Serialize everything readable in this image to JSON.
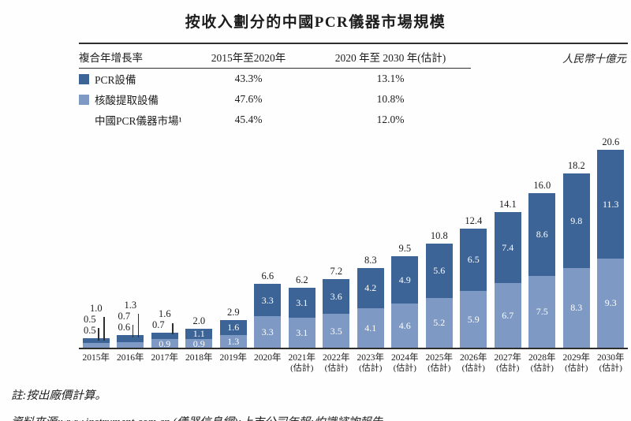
{
  "title": "按收入劃分的中國PCR儀器市場規模",
  "unit_label": "人民幣十億元",
  "cagr_table": {
    "header": {
      "label": "複合年增長率",
      "col1": "2015年至2020年",
      "col2": "2020 年至 2030 年(估計)"
    },
    "rows": [
      {
        "label": "PCR設備",
        "swatch": "dark",
        "v1": "43.3%",
        "v2": "13.1%"
      },
      {
        "label": "核酸提取設備",
        "swatch": "light",
        "v1": "47.6%",
        "v2": "10.8%"
      },
      {
        "label": "中國PCR儀器市場¹",
        "swatch": "none",
        "v1": "45.4%",
        "v2": "12.0%"
      }
    ]
  },
  "chart_data": {
    "type": "bar",
    "stacked": true,
    "title": "按收入劃分的中國PCR儀器市場規模",
    "unit": "人民幣十億元",
    "ylim": [
      0,
      21
    ],
    "grid": false,
    "legend_position": "top-left table",
    "categories": [
      {
        "label": "2015年",
        "sub": ""
      },
      {
        "label": "2016年",
        "sub": ""
      },
      {
        "label": "2017年",
        "sub": ""
      },
      {
        "label": "2018年",
        "sub": ""
      },
      {
        "label": "2019年",
        "sub": ""
      },
      {
        "label": "2020年",
        "sub": ""
      },
      {
        "label": "2021年",
        "sub": "(估計)"
      },
      {
        "label": "2022年",
        "sub": "(估計)"
      },
      {
        "label": "2023年",
        "sub": "(估計)"
      },
      {
        "label": "2024年",
        "sub": "(估計)"
      },
      {
        "label": "2025年",
        "sub": "(估計)"
      },
      {
        "label": "2026年",
        "sub": "(估計)"
      },
      {
        "label": "2027年",
        "sub": "(估計)"
      },
      {
        "label": "2028年",
        "sub": "(估計)"
      },
      {
        "label": "2029年",
        "sub": "(估計)"
      },
      {
        "label": "2030年",
        "sub": "(估計)"
      }
    ],
    "series": [
      {
        "name": "PCR設備",
        "color": "#3d6496",
        "values": [
          0.5,
          0.7,
          0.7,
          1.1,
          1.6,
          3.3,
          3.1,
          3.6,
          4.2,
          4.9,
          5.6,
          6.5,
          7.4,
          8.6,
          9.8,
          11.3
        ]
      },
      {
        "name": "核酸提取設備",
        "color": "#7e99c3",
        "values": [
          0.5,
          0.6,
          0.9,
          0.9,
          1.3,
          3.3,
          3.1,
          3.5,
          4.1,
          4.6,
          5.2,
          5.9,
          6.7,
          7.5,
          8.3,
          9.3
        ]
      }
    ],
    "totals": [
      1.0,
      1.3,
      1.6,
      2.0,
      2.9,
      6.6,
      6.2,
      7.2,
      8.3,
      9.5,
      10.8,
      12.4,
      14.1,
      16.0,
      18.2,
      20.6
    ]
  },
  "notes": {
    "note": "註:按出廠價計算。",
    "source": "資料來源:www.instrument.com.cn (儀器信息網);上市公司年報;灼識諮詢報告。"
  },
  "colors": {
    "pcr_equipment": "#3d6496",
    "nucleic_acid_extraction": "#7e99c3",
    "rule": "#2e2e2e"
  }
}
